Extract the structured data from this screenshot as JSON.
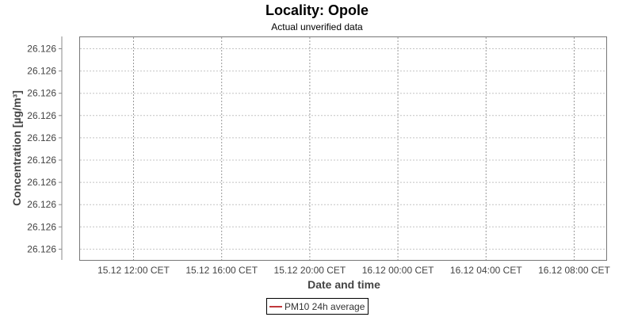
{
  "chart_data": {
    "type": "line",
    "title": "Locality: Opole",
    "subtitle": "Actual unverified data",
    "xlabel": "Date and time",
    "ylabel": "Concentration [µg/m³]",
    "x_tick_labels": [
      "15.12 12:00 CET",
      "15.12 16:00 CET",
      "15.12 20:00 CET",
      "16.12 00:00 CET",
      "16.12 04:00 CET",
      "16.12 08:00 CET"
    ],
    "y_tick_labels": [
      "26.126",
      "26.126",
      "26.126",
      "26.126",
      "26.126",
      "26.126",
      "26.126",
      "26.126",
      "26.126",
      "26.126"
    ],
    "grid": true,
    "legend_placement": "bottom",
    "series": [
      {
        "name": "PM10 24h average",
        "color": "#c0393b",
        "values": []
      }
    ]
  }
}
